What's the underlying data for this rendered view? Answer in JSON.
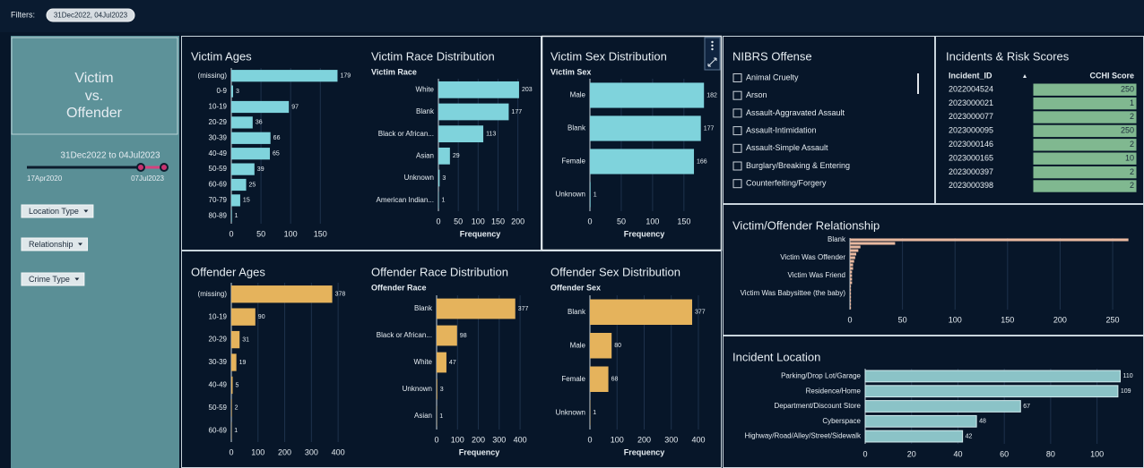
{
  "filters": {
    "label": "Filters:",
    "chip": "31Dec2022, 04Jul2023"
  },
  "sidebar": {
    "title": [
      "Victim",
      "vs.",
      "Offender"
    ],
    "date_range": "31Dec2022 to 04Jul2023",
    "slider": {
      "min_label": "17Apr2020",
      "max_label": "07Jul2023"
    },
    "dropdowns": [
      "Location Type",
      "Relationship",
      "Crime Type"
    ]
  },
  "nibrs": {
    "title": "NIBRS Offense",
    "items": [
      "Animal Cruelty",
      "Arson",
      "Assault-Aggravated Assault",
      "Assault-Intimidation",
      "Assault-Simple Assault",
      "Burglary/Breaking & Entering",
      "Counterfeiting/Forgery"
    ]
  },
  "table": {
    "title": "Incidents &  Risk Scores",
    "columns": [
      "Incident_ID",
      "CCHI Score"
    ],
    "rows": [
      [
        "2022004524",
        250
      ],
      [
        "2023000021",
        1
      ],
      [
        "2023000077",
        2
      ],
      [
        "2023000095",
        250
      ],
      [
        "2023000146",
        2
      ],
      [
        "2023000165",
        10
      ],
      [
        "2023000397",
        2
      ],
      [
        "2023000398",
        2
      ]
    ]
  },
  "chart_data": [
    {
      "type": "bar",
      "title": "Victim Ages",
      "categories": [
        "(missing)",
        "0-9",
        "10-19",
        "20-29",
        "30-39",
        "40-49",
        "50-59",
        "60-69",
        "70-79",
        "80-89"
      ],
      "values": [
        179,
        3,
        97,
        36,
        66,
        65,
        39,
        25,
        15,
        1
      ],
      "color": "#7fd3dc",
      "xlim": [
        0,
        207
      ],
      "xticks": [
        0,
        50,
        100,
        150
      ],
      "grid": true,
      "show_values": true
    },
    {
      "type": "bar",
      "title": "Victim Race Distribution",
      "y_axis_title": "Victim Race",
      "x_axis_label": "Frequency",
      "categories": [
        "White",
        "Blank",
        "Black or African...",
        "Asian",
        "Unknown",
        "American Indian..."
      ],
      "values": [
        203,
        177,
        113,
        29,
        3,
        1
      ],
      "color": "#7fd3dc",
      "xlim": [
        0,
        246
      ],
      "xticks": [
        0,
        50,
        100,
        150,
        200
      ],
      "grid": true,
      "show_values": true
    },
    {
      "type": "bar",
      "title": "Victim Sex Distribution",
      "y_axis_title": "Victim Sex",
      "x_axis_label": "Frequency",
      "categories": [
        "Male",
        "Blank",
        "Female",
        "Unknown"
      ],
      "values": [
        182,
        177,
        166,
        1
      ],
      "color": "#7fd3dc",
      "xlim": [
        0,
        196
      ],
      "xticks": [
        0,
        50,
        100,
        150
      ],
      "grid": true,
      "show_values": true
    },
    {
      "type": "bar",
      "title": "Offender Ages",
      "categories": [
        "(missing)",
        "10-19",
        "20-29",
        "30-39",
        "40-49",
        "50-59",
        "60-69"
      ],
      "values": [
        378,
        90,
        31,
        19,
        5,
        2,
        1
      ],
      "color": "#e5b35c",
      "xlim": [
        0,
        460
      ],
      "xticks": [
        0,
        100,
        200,
        300,
        400
      ],
      "grid": true,
      "show_values": true
    },
    {
      "type": "bar",
      "title": "Offender Race Distribution",
      "y_axis_title": "Offender Race",
      "x_axis_label": "Frequency",
      "categories": [
        "Blank",
        "Black or African...",
        "White",
        "Unknown",
        "Asian"
      ],
      "values": [
        377,
        98,
        47,
        3,
        1
      ],
      "color": "#e5b35c",
      "xlim": [
        0,
        477
      ],
      "xticks": [
        0,
        100,
        200,
        300,
        400
      ],
      "grid": true,
      "show_values": true
    },
    {
      "type": "bar",
      "title": "Offender Sex Distribution",
      "y_axis_title": "Offender Sex",
      "x_axis_label": "Frequency",
      "categories": [
        "Blank",
        "Male",
        "Female",
        "Unknown"
      ],
      "values": [
        377,
        80,
        68,
        1
      ],
      "color": "#e5b35c",
      "xlim": [
        0,
        453
      ],
      "xticks": [
        0,
        100,
        200,
        300,
        400
      ],
      "grid": true,
      "show_values": true
    },
    {
      "type": "bar",
      "title": "Victim/Offender Relationship",
      "categories": [
        "Blank",
        null,
        null,
        null,
        null,
        "Victim Was Offender",
        null,
        null,
        null,
        null,
        "Victim Was Friend",
        null,
        null,
        null,
        null,
        "Victim Was Babysittee (the baby)",
        null,
        null,
        null,
        null
      ],
      "values": [
        265,
        43,
        10,
        8,
        6,
        5,
        4,
        3,
        3,
        2,
        2,
        2,
        2,
        1,
        1,
        1,
        1,
        1,
        1,
        1
      ],
      "color": "#e9b9a0",
      "xlim": [
        0,
        273
      ],
      "xticks": [
        0,
        50,
        100,
        150,
        200,
        250
      ],
      "grid": true,
      "show_values": false
    },
    {
      "type": "bar",
      "title": "Incident Location",
      "categories": [
        "Parking/Drop Lot/Garage",
        "Residence/Home",
        "Department/Discount Store",
        "Cyberspace",
        "Highway/Road/Alley/Street/Sidewalk"
      ],
      "values": [
        110,
        109,
        67,
        48,
        42
      ],
      "color": "#8bc3c7",
      "xlim": [
        0,
        116
      ],
      "xticks": [
        0,
        20,
        40,
        60,
        80,
        100
      ],
      "grid": true,
      "show_values": true
    }
  ]
}
